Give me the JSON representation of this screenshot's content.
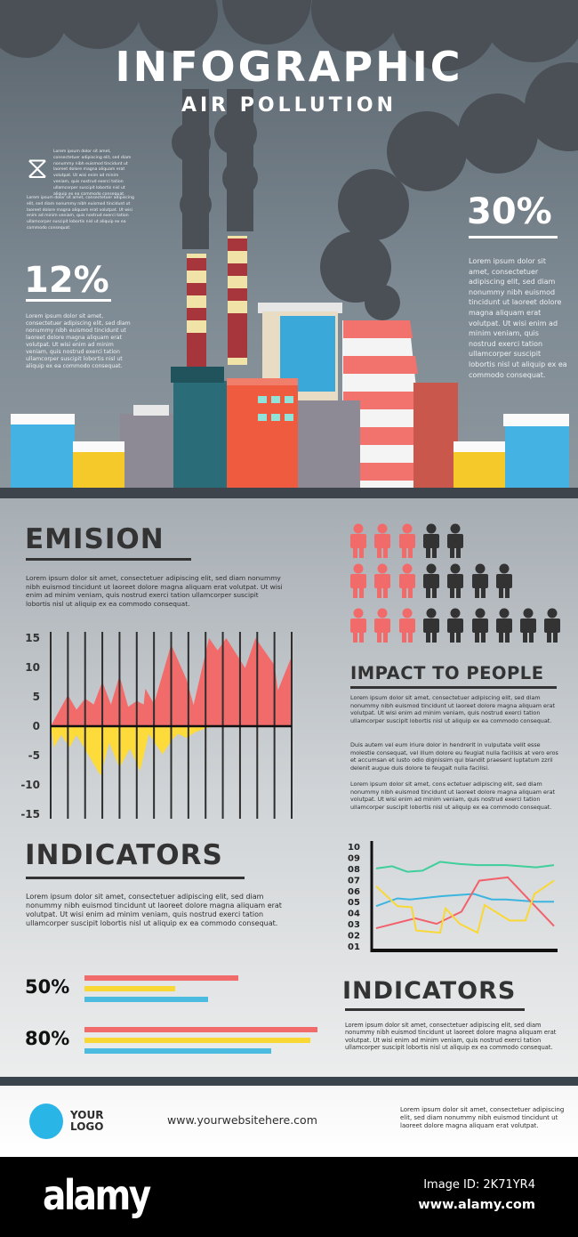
{
  "header": {
    "title": "INFOGRAPHIC",
    "subtitle": "AIR POLLUTION"
  },
  "intro": {
    "icon": "dna-icon",
    "text_a": "Lorem ipsum dolor sit amet, consectetuer adipiscing elit, sed diam nonummy nibh euismod tincidunt ut laoreet dolore magna aliquam erat volutpat. Ut wisi enim ad minim veniam, quis nostrud exerci tation ullamcorper suscipit lobortis nisl ut aliquip ex ea commodo consequat.",
    "text_b": "Lorem ipsum dolor sit amet, consectetuer adipiscing elit, sed diam nonummy nibh euismod tincidunt ut laoreet dolore magna aliquam erat volutpat. Ut wisi enim ad minim veniam, quis nostrud exerci tation ullamcorper suscipit lobortis nisl ut aliquip ex ea commodo consequat."
  },
  "stat_left": {
    "value": "12%",
    "text": "Lorem ipsum dolor sit amet, consectetuer adipiscing elit, sed diam nonummy nibh euismod tincidunt ut laoreet dolore magna aliquam erat volutpat. Ut wisi enim ad minim veniam, quis nostrud exerci tation ullamcorper suscipit lobortis nisl ut aliquip ex ea commodo consequat."
  },
  "stat_right": {
    "value": "30%",
    "text": "Lorem ipsum dolor sit amet, consectetuer adipiscing elit, sed diam nonummy nibh euismod tincidunt ut laoreet dolore magna aliquam erat volutpat. Ut wisi enim ad minim veniam, quis nostrud exerci tation ullamcorper suscipit lobortis nisl ut aliquip ex ea commodo consequat."
  },
  "emision": {
    "heading": "EMISION",
    "text": "Lorem ipsum dolor sit amet, consectetuer adipiscing elit, sed diam nonummy nibh euismod tincidunt ut laoreet dolore magna aliquam erat volutpat. Ut wisi enim ad minim veniam, quis nostrud exerci tation ullamcorper suscipit lobortis nisl ut aliquip ex ea commodo consequat."
  },
  "people": {
    "rows": [
      {
        "red": 3,
        "dark": 2
      },
      {
        "red": 3,
        "dark": 4
      },
      {
        "red": 3,
        "dark": 6
      }
    ],
    "colors": {
      "red": "#f26b6b",
      "dark": "#333333"
    }
  },
  "impact": {
    "heading": "IMPACT TO PEOPLE",
    "paragraphs": [
      "Lorem ipsum dolor sit amet, consectetuer adipiscing elit, sed diam nonummy nibh euismod tincidunt ut laoreet dolore magna aliquam erat volutpat. Ut wisi enim ad minim veniam, quis nostrud exerci tation ullamcorper suscipit lobortis nisl ut aliquip ex ea commodo consequat.",
      "Duis autem vel eum iriure dolor in hendrerit in vulputate velit esse molestie consequat, vel illum dolore eu feugiat nulla facilisis at vero eros et accumsan et iusto odio dignissim qui blandit praesent luptatum zzril delenit augue duis dolore te feugait nulla facilisi.",
      "Lorem ipsum dolor sit amet, cons ectetuer adipiscing elit, sed diam nonummy nibh euismod tincidunt ut laoreet dolore magna aliquam erat volutpat. Ut wisi enim ad minim veniam, quis nostrud exerci tation ullamcorper suscipit lobortis nisl ut aliquip ex ea commodo consequat."
    ]
  },
  "indicators_left": {
    "heading": "INDICATORS",
    "text": "Lorem ipsum dolor sit amet, consectetuer adipiscing elit, sed diam nonummy nibh euismod tincidunt ut laoreet dolore magna aliquam erat volutpat. Ut wisi enim ad minim veniam, quis nostrud exerci tation ullamcorper suscipit lobortis nisl ut aliquip ex ea commodo consequat."
  },
  "indicators_right": {
    "heading": "INDICATORS",
    "text": "Lorem ipsum dolor sit amet, consectetuer adipiscing elit, sed diam nonummy nibh euismod tincidunt ut laoreet dolore magna aliquam erat volutpat. Ut wisi enim ad minim veniam, quis nostrud exerci tation ullamcorper suscipit lobortis nisl ut aliquip ex ea commodo consequat."
  },
  "footer": {
    "logo": "YOUR LOGO",
    "logo_color": "#29b6e6",
    "website": "www.yourwebsitehere.com",
    "text": "Lorem ipsum dolor sit amet, consectetuer adipiscing elit, sed diam nonummy nibh euismod tincidunt ut laoreet dolore magna aliquam erat volutpat."
  },
  "watermark": {
    "brand": "alamy",
    "image_id": "Image ID: 2K71YR4",
    "url": "www.alamy.com"
  },
  "chart_data": [
    {
      "type": "area",
      "ylim": [
        -15,
        15
      ],
      "yticks": [
        "15",
        "10",
        "5",
        "0",
        "-5",
        "-10",
        "-15"
      ],
      "grid": "vertical lines",
      "xlim": [
        0,
        14
      ],
      "series": [
        {
          "color": "#f26b6b",
          "points": [
            [
              0,
              0
            ],
            [
              1,
              5.3
            ],
            [
              1.5,
              2.8
            ],
            [
              2,
              4.7
            ],
            [
              2.5,
              3.7
            ],
            [
              3,
              7.6
            ],
            [
              3.5,
              3.7
            ],
            [
              4,
              8.6
            ],
            [
              4.5,
              3.3
            ],
            [
              5,
              4.3
            ],
            [
              5.4,
              3.7
            ],
            [
              5.5,
              6.4
            ],
            [
              6,
              3.8
            ],
            [
              7,
              13.9
            ],
            [
              7.9,
              7.9
            ],
            [
              8.3,
              3.6
            ],
            [
              9.2,
              15
            ],
            [
              9.7,
              12.9
            ],
            [
              10.2,
              15
            ],
            [
              11.3,
              9.9
            ],
            [
              11.9,
              15
            ],
            [
              13,
              10.4
            ],
            [
              13.2,
              6.1
            ],
            [
              14,
              11.9
            ],
            [
              14,
              0
            ]
          ]
        },
        {
          "color": "#fddb3a",
          "points": [
            [
              0,
              0
            ],
            [
              0.2,
              -3.6
            ],
            [
              0.6,
              -1.5
            ],
            [
              1.1,
              -3.6
            ],
            [
              1.5,
              -1.5
            ],
            [
              2.9,
              -8.4
            ],
            [
              3.4,
              -2.8
            ],
            [
              4,
              -7.1
            ],
            [
              4.6,
              -3.8
            ],
            [
              5.2,
              -7.6
            ],
            [
              5.7,
              -1.3
            ],
            [
              6.5,
              -4.8
            ],
            [
              7,
              -2.5
            ],
            [
              7.4,
              -1.3
            ],
            [
              7.9,
              -2
            ],
            [
              8.4,
              -1
            ],
            [
              9,
              -0.4
            ],
            [
              9.4,
              0
            ]
          ]
        }
      ]
    },
    {
      "type": "line",
      "yticks": [
        "10",
        "09",
        "08",
        "07",
        "06",
        "05",
        "04",
        "03",
        "02",
        "01"
      ],
      "ylim": [
        1,
        10
      ],
      "xlim": [
        0,
        10
      ],
      "series": [
        {
          "color": "#3ecf9a",
          "points": [
            [
              0,
              8.0
            ],
            [
              0.9,
              8.2
            ],
            [
              1.75,
              7.7
            ],
            [
              2.6,
              7.8
            ],
            [
              3.6,
              8.6
            ],
            [
              4.7,
              8.4
            ],
            [
              5.7,
              8.3
            ],
            [
              7.3,
              8.3
            ],
            [
              9,
              8.1
            ],
            [
              10,
              8.3
            ]
          ]
        },
        {
          "color": "#3bb5e0",
          "points": [
            [
              0,
              4.6
            ],
            [
              1.2,
              5.3
            ],
            [
              1.9,
              5.2
            ],
            [
              3.7,
              5.5
            ],
            [
              5.5,
              5.7
            ],
            [
              6.5,
              5.2
            ],
            [
              7.3,
              5.2
            ],
            [
              9,
              5.0
            ],
            [
              10,
              5.0
            ]
          ]
        },
        {
          "color": "#f2616b",
          "points": [
            [
              0,
              2.6
            ],
            [
              2.2,
              3.5
            ],
            [
              3.4,
              3.0
            ],
            [
              4.8,
              4.1
            ],
            [
              5.8,
              6.9
            ],
            [
              7.4,
              7.2
            ],
            [
              10,
              2.8
            ]
          ]
        },
        {
          "color": "#f9d835",
          "points": [
            [
              0,
              6.4
            ],
            [
              1.2,
              4.6
            ],
            [
              2,
              4.5
            ],
            [
              2.25,
              2.4
            ],
            [
              3.6,
              2.2
            ],
            [
              3.9,
              4.4
            ],
            [
              4.7,
              3.0
            ],
            [
              5.7,
              2.2
            ],
            [
              6.1,
              4.7
            ],
            [
              7.5,
              3.3
            ],
            [
              8.4,
              3.3
            ],
            [
              8.9,
              5.7
            ],
            [
              10,
              6.9
            ]
          ]
        }
      ]
    },
    {
      "type": "bar",
      "orientation": "horizontal",
      "groups": [
        {
          "label": "50%",
          "values": [
            66,
            39,
            53
          ]
        },
        {
          "label": "80%",
          "values": [
            100,
            97,
            80
          ]
        }
      ],
      "colors": [
        "#f26b6b",
        "#f9d835",
        "#4bbbe0"
      ],
      "xlim": [
        0,
        100
      ]
    }
  ]
}
